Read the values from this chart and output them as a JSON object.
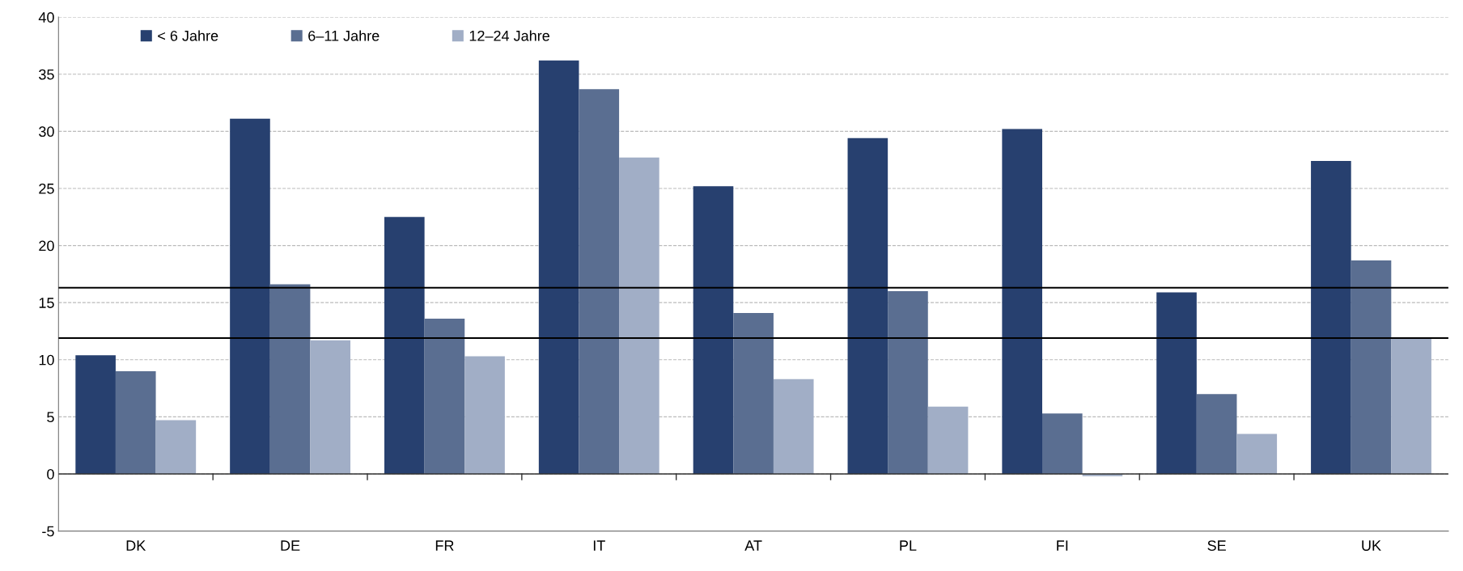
{
  "chart_data": {
    "type": "bar",
    "categories": [
      "DK",
      "DE",
      "FR",
      "IT",
      "AT",
      "PL",
      "FI",
      "SE",
      "UK"
    ],
    "series": [
      {
        "name": "< 6 Jahre",
        "color": "#27406f",
        "values": [
          10.4,
          31.1,
          22.5,
          36.2,
          25.2,
          29.4,
          30.2,
          15.9,
          27.4
        ]
      },
      {
        "name": "6–11 Jahre",
        "color": "#5a6e91",
        "values": [
          9.0,
          16.6,
          13.6,
          33.7,
          14.1,
          16.0,
          5.3,
          7.0,
          18.7
        ]
      },
      {
        "name": "12–24 Jahre",
        "color": "#a1aec6",
        "values": [
          4.7,
          11.7,
          10.3,
          27.7,
          8.3,
          5.9,
          -0.2,
          3.5,
          11.9
        ]
      }
    ],
    "ylim": [
      -5,
      40
    ],
    "yticks": [
      -5,
      0,
      5,
      10,
      15,
      20,
      25,
      30,
      35,
      40
    ],
    "ref_lines": [
      {
        "axis": "y",
        "value": 16.3,
        "color": "#000000"
      },
      {
        "axis": "y",
        "value": 11.9,
        "color": "#000000"
      }
    ],
    "grid": "y",
    "legend": "top left"
  }
}
